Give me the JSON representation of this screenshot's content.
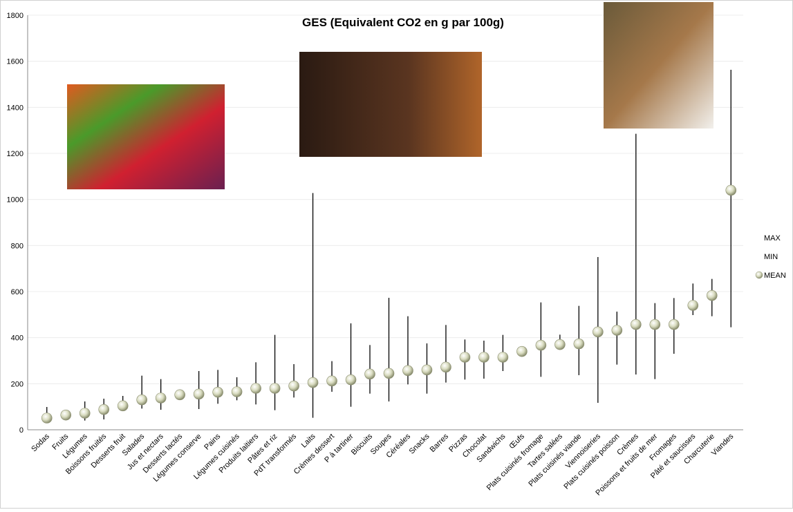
{
  "chart_data": {
    "type": "high-low-mean",
    "title": "GES (Equivalent CO2 en g par 100g)",
    "categories": [
      "Sodas",
      "Fruits",
      "Légumes",
      "Boissons fruités",
      "Desserts fruit",
      "Salades",
      "Jus et nectars",
      "Desserts lactés",
      "Légumes conserve",
      "Pains",
      "Légumes cuisinés",
      "Produits laitiers",
      "Pâtes et riz",
      "PdT transformés",
      "Laits",
      "Crèmes dessert",
      "P à tartiner",
      "Biscuits",
      "Soupes",
      "Céréales",
      "Snacks",
      "Barres",
      "Pizzas",
      "Chocolat",
      "Sandwichs",
      "Œufs",
      "Plats cuisinés fromage",
      "Tartes salées",
      "Plats cuisinés viande",
      "Viennoiseries",
      "Plats cuisinés poisson",
      "Crèmes",
      "Poissons et fruits de mer",
      "Fromages",
      "Pâté et saucisses",
      "Charcuterie",
      "Viandes"
    ],
    "series": [
      {
        "name": "MAX",
        "color": "#000000",
        "values": [
          99,
          70,
          123,
          135,
          147,
          235,
          220,
          170,
          255,
          260,
          228,
          293,
          412,
          285,
          1028,
          298,
          462,
          368,
          573,
          493,
          375,
          455,
          392,
          387,
          412,
          340,
          553,
          413,
          538,
          750,
          513,
          1285,
          550,
          572,
          635,
          655,
          1563
        ]
      },
      {
        "name": "MIN",
        "color": "#000000",
        "values": [
          30,
          55,
          40,
          45,
          90,
          92,
          87,
          140,
          90,
          113,
          128,
          110,
          85,
          140,
          52,
          165,
          100,
          157,
          123,
          197,
          157,
          205,
          218,
          222,
          255,
          340,
          230,
          355,
          237,
          117,
          283,
          240,
          220,
          330,
          498,
          493,
          445
        ]
      },
      {
        "name": "MEAN",
        "color": "#d9dcc0",
        "values": [
          51,
          64,
          72,
          88,
          104,
          130,
          138,
          152,
          155,
          163,
          165,
          180,
          180,
          190,
          205,
          212,
          217,
          242,
          245,
          257,
          260,
          272,
          315,
          315,
          315,
          340,
          367,
          370,
          373,
          425,
          432,
          457,
          457,
          457,
          540,
          583,
          1040
        ]
      }
    ],
    "ylim": [
      0,
      1800
    ],
    "yticks": [
      0,
      200,
      400,
      600,
      800,
      1000,
      1200,
      1400,
      1600,
      1800
    ],
    "grid": true
  }
}
